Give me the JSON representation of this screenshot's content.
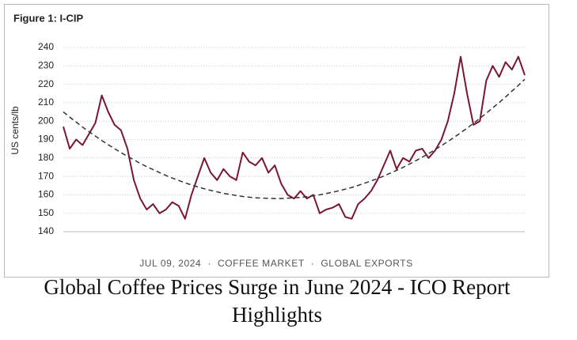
{
  "chart_data": {
    "type": "line",
    "title": "Figure 1: I-CIP",
    "y_label": "US cents/lb",
    "categories": [
      null,
      null,
      null,
      null,
      null,
      null,
      null,
      null,
      null,
      null,
      null,
      null,
      null,
      null,
      null,
      null,
      null,
      null,
      null,
      null,
      null,
      null,
      null,
      null,
      null,
      null,
      null,
      null,
      null,
      null,
      null,
      null,
      null,
      null,
      null,
      null,
      null,
      null,
      null,
      null,
      null,
      null,
      null,
      null,
      null,
      null,
      null,
      null,
      null,
      null,
      null,
      null,
      null,
      null,
      null,
      null,
      null,
      null,
      null,
      null,
      null,
      null,
      null,
      null,
      null,
      null,
      null,
      null,
      null,
      null,
      null,
      null,
      null
    ],
    "series": [
      {
        "color": "#7a1730",
        "style": "solid",
        "values": [
          197,
          185,
          190,
          187,
          193,
          199,
          214,
          205,
          198,
          195,
          185,
          168,
          158,
          152,
          155,
          150,
          152,
          156,
          154,
          147,
          160,
          170,
          180,
          172,
          168,
          174,
          170,
          168,
          183,
          178,
          176,
          180,
          172,
          176,
          166,
          160,
          158,
          162,
          158,
          160,
          150,
          152,
          153,
          155,
          148,
          147,
          155,
          158,
          162,
          168,
          176,
          184,
          174,
          180,
          178,
          184,
          185,
          180,
          184,
          190,
          200,
          215,
          235,
          215,
          198,
          200,
          222,
          230,
          224,
          232,
          228,
          235,
          225
        ]
      },
      {
        "color": "#333333",
        "style": "dashed",
        "values": [
          205.0,
          202.2,
          199.5,
          196.8,
          194.3,
          191.9,
          189.5,
          187.2,
          185.0,
          182.9,
          180.9,
          179.0,
          177.1,
          175.3,
          173.7,
          172.1,
          170.5,
          169.1,
          167.8,
          166.5,
          165.4,
          164.3,
          163.3,
          162.4,
          161.6,
          160.8,
          160.2,
          159.6,
          159.1,
          158.7,
          158.4,
          158.2,
          158.1,
          158.0,
          158.0,
          158.2,
          158.4,
          158.6,
          159.0,
          159.5,
          160.0,
          160.7,
          161.4,
          162.2,
          163.1,
          164.0,
          165.1,
          166.3,
          167.5,
          168.8,
          170.2,
          171.7,
          173.3,
          174.9,
          176.7,
          178.5,
          180.4,
          182.4,
          184.5,
          186.7,
          188.9,
          191.3,
          193.7,
          196.2,
          198.8,
          201.5,
          204.3,
          207.2,
          210.1,
          213.1,
          216.3,
          219.4,
          222.7
        ]
      }
    ],
    "ylim": [
      140,
      240
    ],
    "yticks": [
      140,
      150,
      160,
      170,
      180,
      190,
      200,
      210,
      220,
      230,
      240
    ],
    "grid": true
  },
  "meta": [
    "JUL 09, 2024",
    "COFFEE MARKET",
    "GLOBAL EXPORTS"
  ],
  "headline": "Global Coffee Prices Surge in June 2024 - ICO Report Highlights"
}
